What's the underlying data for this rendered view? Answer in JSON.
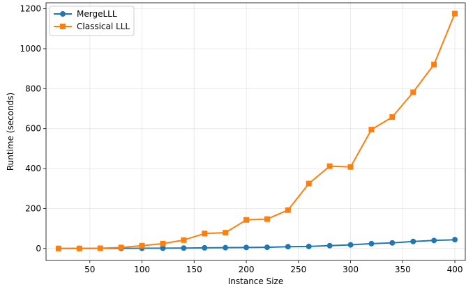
{
  "chart_data": {
    "type": "line",
    "xlabel": "Instance Size",
    "ylabel": "Runtime (seconds)",
    "xlim": [
      8,
      410
    ],
    "ylim": [
      -60,
      1230
    ],
    "xticks": [
      50,
      100,
      150,
      200,
      250,
      300,
      350,
      400
    ],
    "yticks": [
      0,
      200,
      400,
      600,
      800,
      1000,
      1200
    ],
    "grid": true,
    "legend_position": "top-left",
    "x": [
      20,
      40,
      60,
      80,
      100,
      120,
      140,
      160,
      180,
      200,
      220,
      240,
      260,
      280,
      300,
      320,
      340,
      360,
      380,
      400
    ],
    "series": [
      {
        "name": "MergeLLL",
        "color": "#1f77b4",
        "marker": "circle",
        "values": [
          0,
          0,
          0.5,
          0.5,
          1,
          1.5,
          2,
          3,
          4,
          5,
          6,
          9,
          10,
          14,
          18,
          24,
          28,
          35,
          40,
          44
        ]
      },
      {
        "name": "Classical LLL",
        "color": "#ff7f0e",
        "marker": "square",
        "values": [
          0,
          0,
          1,
          5,
          14,
          24,
          42,
          75,
          79,
          143,
          147,
          192,
          325,
          412,
          408,
          595,
          658,
          782,
          921,
          1176
        ]
      }
    ]
  }
}
